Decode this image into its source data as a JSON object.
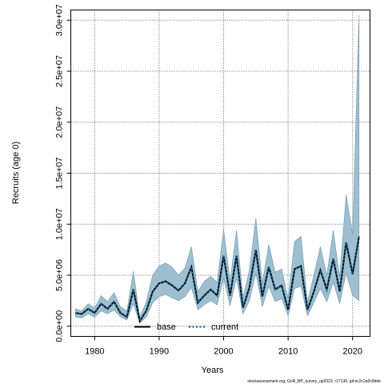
{
  "chart_data": {
    "type": "area",
    "title": "",
    "xlabel": "Years",
    "ylabel": "Recruits (age 0)",
    "xlim": [
      1976.3,
      2022.7
    ],
    "ylim": [
      -1000000,
      31000000
    ],
    "xticks": [
      1980,
      1990,
      2000,
      2010,
      2020
    ],
    "xtick_labels": [
      "1980",
      "1990",
      "2000",
      "2010",
      "2020"
    ],
    "yticks": [
      0,
      5000000,
      10000000,
      15000000,
      20000000,
      25000000,
      30000000
    ],
    "ytick_labels": [
      "0.0e+00",
      "5.0e+06",
      "1.0e+07",
      "1.5e+07",
      "2.0e+07",
      "2.5e+07",
      "3.0e+07"
    ],
    "grid": true,
    "legend_position": "bottom-left",
    "x": [
      1977,
      1978,
      1979,
      1980,
      1981,
      1982,
      1983,
      1984,
      1985,
      1986,
      1987,
      1988,
      1989,
      1990,
      1991,
      1992,
      1993,
      1994,
      1995,
      1996,
      1997,
      1998,
      1999,
      2000,
      2001,
      2002,
      2003,
      2004,
      2005,
      2006,
      2007,
      2008,
      2009,
      2010,
      2011,
      2012,
      2013,
      2014,
      2015,
      2016,
      2017,
      2018,
      2019,
      2020,
      2021
    ],
    "series": [
      {
        "name": "base",
        "line_style": "solid",
        "color": "#000000",
        "values": [
          1300000,
          1200000,
          1700000,
          1300000,
          2200000,
          1700000,
          2400000,
          1300000,
          900000,
          3600000,
          500000,
          1500000,
          3400000,
          4200000,
          4400000,
          4000000,
          3500000,
          4200000,
          5800000,
          2300000,
          3000000,
          3600000,
          3000000,
          6900000,
          3000000,
          6900000,
          1800000,
          3800000,
          7500000,
          2900000,
          5800000,
          3600000,
          4000000,
          1600000,
          5600000,
          5900000,
          1600000,
          3400000,
          5500000,
          3600000,
          6600000,
          3400000,
          8200000,
          5100000,
          8800000
        ]
      },
      {
        "name": "current",
        "line_style": "dotted",
        "color": "#1a5f91",
        "values": [
          1300000,
          1200000,
          1700000,
          1300000,
          2200000,
          1700000,
          2400000,
          1300000,
          900000,
          3600000,
          500000,
          1500000,
          3400000,
          4200000,
          4400000,
          4000000,
          3500000,
          4200000,
          5800000,
          2300000,
          3000000,
          3600000,
          3000000,
          6900000,
          3000000,
          6900000,
          1800000,
          3800000,
          7500000,
          2900000,
          5800000,
          3600000,
          4000000,
          1600000,
          5600000,
          5900000,
          1600000,
          3400000,
          5500000,
          3600000,
          6600000,
          3400000,
          8200000,
          5100000,
          8800000
        ],
        "ci_upper": [
          1700000,
          1500000,
          2200000,
          1800000,
          3000000,
          2400000,
          3300000,
          1900000,
          1500000,
          5400000,
          900000,
          2400000,
          5000000,
          5900000,
          6200000,
          5800000,
          5000000,
          5700000,
          7800000,
          3400000,
          4400000,
          4900000,
          4300000,
          9500000,
          4400000,
          9400000,
          2800000,
          5500000,
          10600000,
          4200000,
          8000000,
          5300000,
          5600000,
          2700000,
          8300000,
          8800000,
          2400000,
          5000000,
          7800000,
          5000000,
          9400000,
          4800000,
          12900000,
          9000000,
          30500000
        ],
        "ci_lower": [
          900000,
          800000,
          1200000,
          900000,
          1500000,
          1200000,
          1600000,
          900000,
          600000,
          2200000,
          300000,
          900000,
          2300000,
          2900000,
          3100000,
          2800000,
          2500000,
          2900000,
          3800000,
          1600000,
          2100000,
          2500000,
          2100000,
          4700000,
          2000000,
          4700000,
          1200000,
          2500000,
          5200000,
          1900000,
          3900000,
          2400000,
          2700000,
          1000000,
          3700000,
          3900000,
          1000000,
          2300000,
          3700000,
          2400000,
          4300000,
          2200000,
          5200000,
          3000000,
          2500000
        ]
      }
    ],
    "band_color": "#9dbfcf",
    "footnote": "stockassessment.org, GoR_BP_survey_up2023, r17136, git:ec2c2a0c8dde"
  }
}
